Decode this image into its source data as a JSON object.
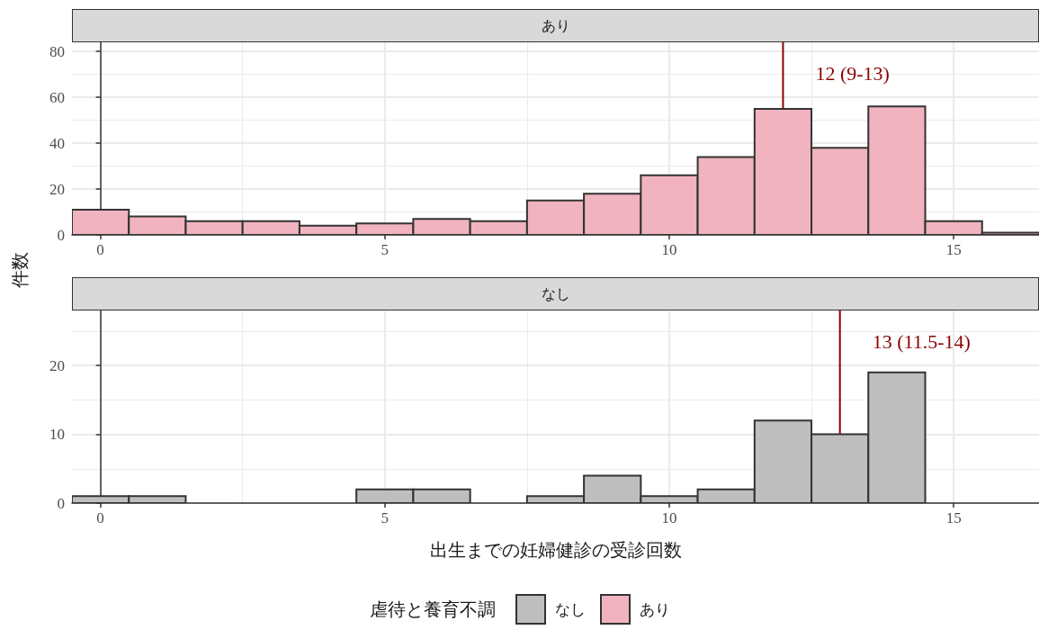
{
  "chart_data": [
    {
      "type": "histogram",
      "title": "あり",
      "ylabel": "件数",
      "bins": [
        -0.5,
        0.5,
        1.5,
        2.5,
        3.5,
        4.5,
        5.5,
        6.5,
        7.5,
        8.5,
        9.5,
        10.5,
        11.5,
        12.5,
        13.5,
        14.5,
        15.5,
        16.5
      ],
      "series": [
        {
          "name": "あり",
          "color": "#f0b3bf",
          "values": [
            11,
            8,
            6,
            6,
            4,
            5,
            7,
            6,
            15,
            18,
            26,
            34,
            55,
            38,
            56,
            6,
            1
          ]
        }
      ],
      "xlim": [
        -0.5,
        16.5
      ],
      "xticks": [
        0,
        5,
        10,
        15
      ],
      "ylim": [
        0,
        84
      ],
      "yticks": [
        0,
        20,
        40,
        60,
        80
      ],
      "ref_lines": [
        {
          "axis": "x",
          "value": 12,
          "label": "12 (9-13)",
          "color": "#8b0000"
        }
      ],
      "grid": true,
      "legend": "bottom"
    },
    {
      "type": "histogram",
      "title": "なし",
      "xlabel": "出生までの妊婦健診の受診回数",
      "legend_title": "虐待と養育不調",
      "bins": [
        -0.5,
        0.5,
        1.5,
        2.5,
        3.5,
        4.5,
        5.5,
        6.5,
        7.5,
        8.5,
        9.5,
        10.5,
        11.5,
        12.5,
        13.5,
        14.5,
        15.5,
        16.5
      ],
      "series": [
        {
          "name": "なし",
          "color": "#bebebe",
          "values": [
            1,
            1,
            0,
            0,
            0,
            2,
            2,
            0,
            1,
            4,
            1,
            2,
            12,
            10,
            19,
            0,
            0
          ]
        }
      ],
      "xlim": [
        -0.5,
        16.5
      ],
      "xticks": [
        0,
        5,
        10,
        15
      ],
      "ylim": [
        0,
        28
      ],
      "yticks": [
        0,
        10,
        20
      ],
      "ref_lines": [
        {
          "axis": "x",
          "value": 13,
          "label": "13 (11.5-14)",
          "color": "#8b0000"
        }
      ],
      "grid": true,
      "legend": "bottom"
    }
  ]
}
